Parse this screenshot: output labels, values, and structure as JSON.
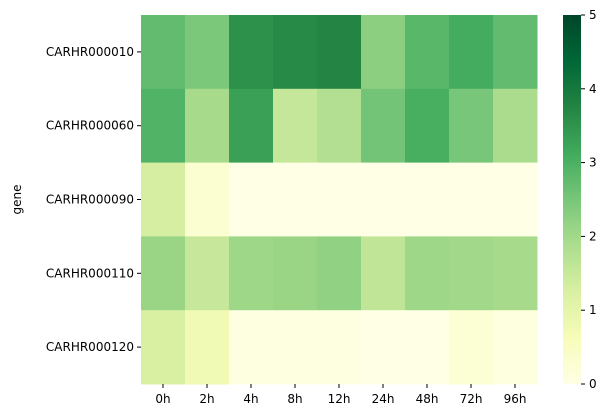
{
  "chart_data": {
    "type": "heatmap",
    "title": "",
    "xlabel": "",
    "ylabel": "gene",
    "x_categories": [
      "0h",
      "2h",
      "4h",
      "8h",
      "12h",
      "24h",
      "48h",
      "72h",
      "96h"
    ],
    "y_categories": [
      "CARHR000010",
      "CARHR000060",
      "CARHR000090",
      "CARHR000110",
      "CARHR000120"
    ],
    "values": [
      [
        2.75,
        2.45,
        3.55,
        3.65,
        3.75,
        2.25,
        2.85,
        3.1,
        2.75
      ],
      [
        2.95,
        1.95,
        3.3,
        1.55,
        1.8,
        2.55,
        3.05,
        2.5,
        1.9
      ],
      [
        1.3,
        0.3,
        0.0,
        0.0,
        0.0,
        0.0,
        0.0,
        0.0,
        0.0
      ],
      [
        2.1,
        1.5,
        2.05,
        2.1,
        2.2,
        1.6,
        2.05,
        2.0,
        1.95
      ],
      [
        1.25,
        0.75,
        0.05,
        0.05,
        0.05,
        0.0,
        0.0,
        0.25,
        0.08
      ]
    ],
    "colorbar": {
      "vmin": 0,
      "vmax": 5,
      "ticks": [
        "0",
        "1",
        "2",
        "3",
        "4",
        "5"
      ],
      "colormap": "YlGn",
      "stops": [
        "#ffffe5",
        "#f7fcb9",
        "#d9f0a3",
        "#addd8e",
        "#78c679",
        "#41ab5d",
        "#238443",
        "#006837",
        "#004529"
      ]
    },
    "grid": false,
    "legend": "colorbar-right"
  }
}
